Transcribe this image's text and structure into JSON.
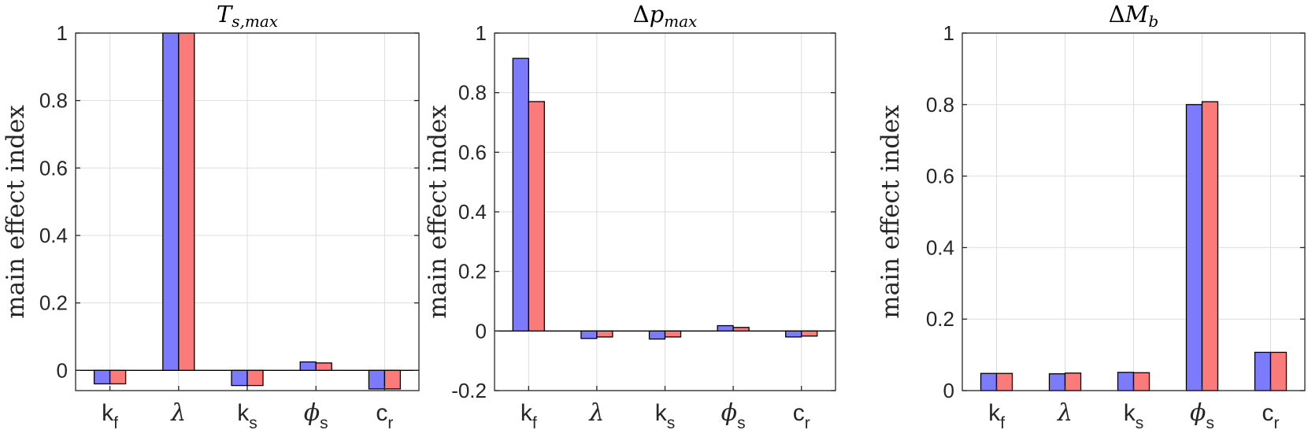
{
  "colors": {
    "series_a": "#7b7bfb",
    "series_b": "#fb7b7b",
    "edge": "#000000",
    "grid": "#dddddd",
    "axis": "#262626"
  },
  "chart_data": [
    {
      "type": "bar",
      "title": {
        "delta": "",
        "main": "T",
        "sub": "s,max"
      },
      "ylabel": "main effect index",
      "ylim": [
        -0.06,
        1.0
      ],
      "yticks": [
        0,
        0.2,
        0.4,
        0.6,
        0.8,
        1
      ],
      "ytick_labels": [
        "0",
        "0.2",
        "0.4",
        "0.6",
        "0.8",
        "1"
      ],
      "grid": true,
      "categories": [
        {
          "main": "k",
          "sub": "f"
        },
        {
          "main": "λ",
          "sub": ""
        },
        {
          "main": "k",
          "sub": "s"
        },
        {
          "main": "ϕ",
          "sub": "s"
        },
        {
          "main": "c",
          "sub": "r"
        }
      ],
      "series": [
        {
          "values": [
            -0.04,
            1.0,
            -0.045,
            0.025,
            -0.055
          ]
        },
        {
          "values": [
            -0.04,
            1.0,
            -0.045,
            0.022,
            -0.055
          ]
        }
      ]
    },
    {
      "type": "bar",
      "title": {
        "delta": "Δ",
        "main": "p",
        "sub": "max"
      },
      "ylabel": "main effect index",
      "ylim": [
        -0.2,
        1.0
      ],
      "yticks": [
        -0.2,
        0,
        0.2,
        0.4,
        0.6,
        0.8,
        1
      ],
      "ytick_labels": [
        "-0.2",
        "0",
        "0.2",
        "0.4",
        "0.6",
        "0.8",
        "1"
      ],
      "grid": true,
      "categories": [
        {
          "main": "k",
          "sub": "f"
        },
        {
          "main": "λ",
          "sub": ""
        },
        {
          "main": "k",
          "sub": "s"
        },
        {
          "main": "ϕ",
          "sub": "s"
        },
        {
          "main": "c",
          "sub": "r"
        }
      ],
      "series": [
        {
          "values": [
            0.915,
            -0.025,
            -0.027,
            0.018,
            -0.02
          ]
        },
        {
          "values": [
            0.77,
            -0.02,
            -0.02,
            0.012,
            -0.017
          ]
        }
      ]
    },
    {
      "type": "bar",
      "title": {
        "delta": "Δ",
        "main": "M",
        "sub": "b"
      },
      "ylabel": "main effect index",
      "ylim": [
        0,
        1.0
      ],
      "yticks": [
        0,
        0.2,
        0.4,
        0.6,
        0.8,
        1
      ],
      "ytick_labels": [
        "0",
        "0.2",
        "0.4",
        "0.6",
        "0.8",
        "1"
      ],
      "grid": true,
      "categories": [
        {
          "main": "k",
          "sub": "f"
        },
        {
          "main": "λ",
          "sub": ""
        },
        {
          "main": "k",
          "sub": "s"
        },
        {
          "main": "ϕ",
          "sub": "s"
        },
        {
          "main": "c",
          "sub": "r"
        }
      ],
      "series": [
        {
          "values": [
            0.048,
            0.047,
            0.051,
            0.8,
            0.107
          ]
        },
        {
          "values": [
            0.048,
            0.049,
            0.05,
            0.808,
            0.107
          ]
        }
      ]
    }
  ]
}
